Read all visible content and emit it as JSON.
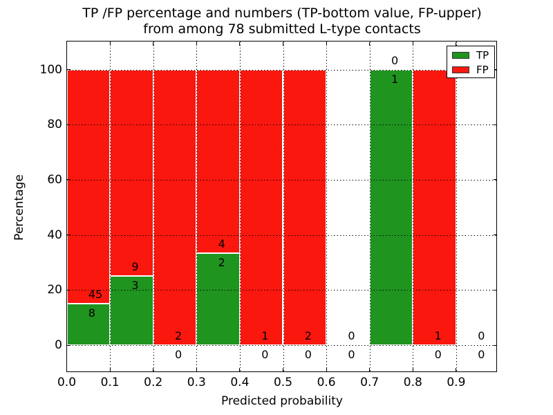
{
  "figure": {
    "title_line1": "TP /FP percentage and numbers (TP-bottom value, FP-upper)",
    "title_line2": "from among 78 submitted L-type contacts"
  },
  "chart_data": {
    "type": "bar",
    "subtype": "stacked-percentage-histogram",
    "title": "TP /FP percentage and numbers (TP-bottom value, FP-upper) from among 78 submitted L-type contacts",
    "xlabel": "Predicted probability",
    "ylabel": "Percentage",
    "total_contacts": 78,
    "bin_width": 0.1,
    "categories": [
      "0.0-0.1",
      "0.1-0.2",
      "0.2-0.3",
      "0.3-0.4",
      "0.4-0.5",
      "0.5-0.6",
      "0.6-0.7",
      "0.7-0.8",
      "0.8-0.9",
      "0.9-1.0"
    ],
    "bin_starts": [
      0.0,
      0.1,
      0.2,
      0.3,
      0.4,
      0.5,
      0.6,
      0.7,
      0.8,
      0.9
    ],
    "series": [
      {
        "name": "TP",
        "color": "#1f941f",
        "counts": [
          8,
          3,
          0,
          2,
          0,
          0,
          0,
          1,
          0,
          0
        ],
        "position": "bottom"
      },
      {
        "name": "FP",
        "color": "#fa170e",
        "counts": [
          45,
          9,
          2,
          4,
          1,
          2,
          0,
          0,
          1,
          0
        ],
        "position": "top"
      }
    ],
    "tp_percent_of_bin": [
      15.1,
      25.0,
      0.0,
      33.3,
      0.0,
      0.0,
      null,
      100.0,
      0.0,
      null
    ],
    "annotation_rule": "FP count printed above TP/FP boundary, TP count printed below it",
    "xticks": [
      "0.0",
      "0.1",
      "0.2",
      "0.3",
      "0.4",
      "0.5",
      "0.6",
      "0.7",
      "0.8",
      "0.9"
    ],
    "yticks": [
      "0",
      "20",
      "40",
      "60",
      "80",
      "100"
    ],
    "ytick_values": [
      0,
      20,
      40,
      60,
      80,
      100
    ],
    "xlim": [
      0.0,
      0.995
    ],
    "ylim_percent": [
      0,
      100
    ],
    "grid": "dotted-black",
    "legend": {
      "position": "upper right",
      "entries": [
        {
          "label": "TP",
          "color": "#1f941f"
        },
        {
          "label": "FP",
          "color": "#fa170e"
        }
      ]
    }
  }
}
